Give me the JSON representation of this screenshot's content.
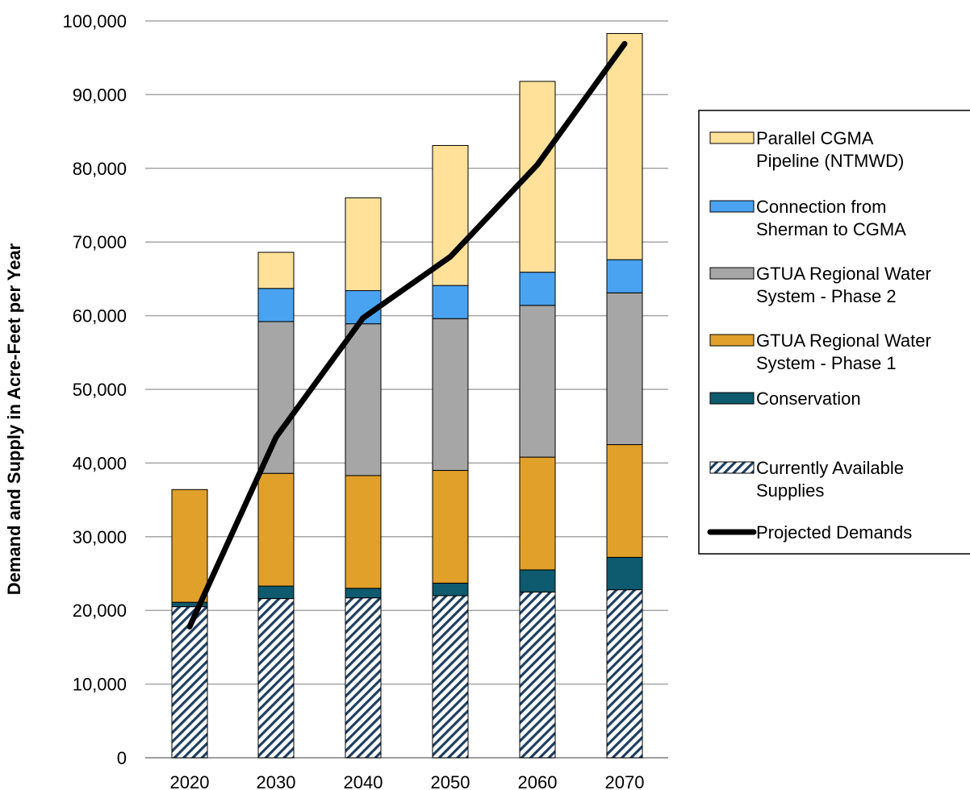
{
  "chart_data": {
    "type": "bar",
    "stacked": true,
    "title": "",
    "xlabel": "",
    "ylabel": "Demand and Supply in Acre-Feet per Year",
    "ylim": [
      0,
      100000
    ],
    "yticks": [
      0,
      10000,
      20000,
      30000,
      40000,
      50000,
      60000,
      70000,
      80000,
      90000,
      100000
    ],
    "ytick_labels": [
      "0",
      "10,000",
      "20,000",
      "30,000",
      "40,000",
      "50,000",
      "60,000",
      "70,000",
      "80,000",
      "90,000",
      "100,000"
    ],
    "grid": "horizontal",
    "legend_position": "right",
    "categories": [
      "2020",
      "2030",
      "2040",
      "2050",
      "2060",
      "2070"
    ],
    "series": [
      {
        "name": "Currently Available Supplies",
        "color": "#1f3f5f",
        "pattern": "hatched",
        "values": [
          20500,
          21600,
          21700,
          22000,
          22500,
          22800
        ]
      },
      {
        "name": "Conservation",
        "color": "#0e5a6e",
        "values": [
          600,
          1700,
          1300,
          1700,
          3000,
          4400
        ]
      },
      {
        "name": "GTUA Regional Water System - Phase 1",
        "color": "#e0a02a",
        "values": [
          15300,
          15300,
          15300,
          15300,
          15300,
          15300
        ]
      },
      {
        "name": "GTUA Regional Water System - Phase 2",
        "color": "#a6a6a6",
        "values": [
          0,
          20600,
          20600,
          20600,
          20600,
          20600
        ]
      },
      {
        "name": "Connection from Sherman to CGMA",
        "color": "#4aa3f0",
        "values": [
          0,
          4500,
          4500,
          4500,
          4500,
          4500
        ]
      },
      {
        "name": "Parallel CGMA Pipeline (NTMWD)",
        "color": "#ffe199",
        "values": [
          0,
          4900,
          12600,
          19000,
          25900,
          30700
        ]
      }
    ],
    "line_series": {
      "name": "Projected Demands",
      "color": "#000000",
      "values": [
        17800,
        43500,
        59700,
        68000,
        80500,
        96900
      ]
    },
    "legend": [
      {
        "lines": [
          "Parallel CGMA",
          "Pipeline (NTMWD)"
        ],
        "color": "#ffe199",
        "kind": "box"
      },
      {
        "lines": [
          "Connection from",
          "Sherman to CGMA"
        ],
        "color": "#4aa3f0",
        "kind": "box"
      },
      {
        "lines": [
          "GTUA Regional Water",
          "System - Phase 2"
        ],
        "color": "#a6a6a6",
        "kind": "box"
      },
      {
        "lines": [
          "GTUA Regional Water",
          "System - Phase 1"
        ],
        "color": "#e0a02a",
        "kind": "box"
      },
      {
        "lines": [
          "Conservation"
        ],
        "color": "#0e5a6e",
        "kind": "box"
      },
      {
        "lines": [
          "Currently Available",
          "Supplies"
        ],
        "color": "#1f3f5f",
        "kind": "hatch"
      },
      {
        "lines": [
          "Projected Demands"
        ],
        "color": "#000000",
        "kind": "line"
      }
    ]
  }
}
